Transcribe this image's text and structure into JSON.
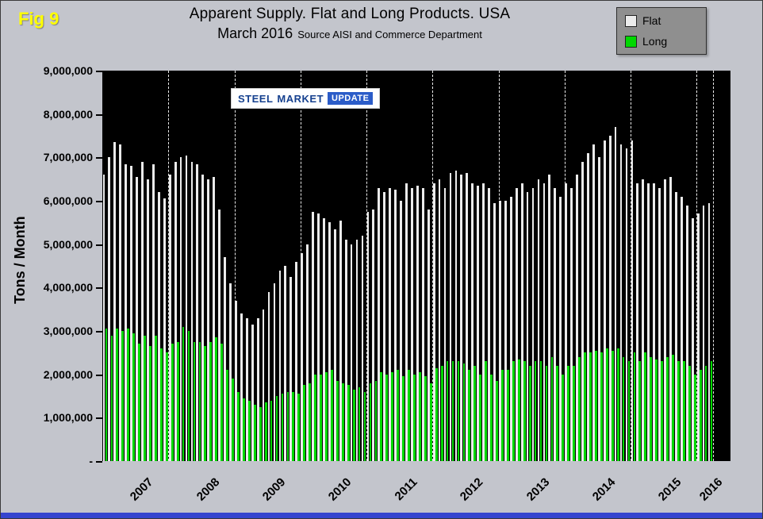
{
  "fig_label": "Fig 9",
  "title": {
    "line1": "Apparent Supply. Flat and Long Products. USA",
    "line2_main": "March 2016",
    "line2_source": "Source AISI and Commerce Department"
  },
  "legend": {
    "flat_label": "Flat",
    "long_label": "Long"
  },
  "watermark": {
    "word1": "STEEL",
    "word2": "MARKET",
    "word3": "UPDATE"
  },
  "y_axis": {
    "title": "Tons / Month",
    "tick_labels": [
      "9,000,000",
      "8,000,000",
      "7,000,000",
      "6,000,000",
      "5,000,000",
      "4,000,000",
      "3,000,000",
      "2,000,000",
      "1,000,000",
      "-"
    ]
  },
  "x_axis": {
    "year_labels": [
      "2007",
      "2008",
      "2009",
      "2010",
      "2011",
      "2012",
      "2013",
      "2014",
      "2015",
      "2016"
    ]
  },
  "colors": {
    "background": "#c3c5cc",
    "plot_background": "#000000",
    "flat": "#ebebeb",
    "long": "#00d800",
    "fig_label": "#ffff00",
    "legend_background": "#8f8f8f",
    "accent_bar": "#3545cf"
  },
  "chart_data": {
    "type": "bar",
    "title": "Apparent Supply. Flat and Long Products. USA",
    "subtitle": "March 2016 Source AISI and Commerce Department",
    "ylabel": "Tons / Month",
    "ylim": [
      0,
      9000000
    ],
    "x_start": "2007-01",
    "x_end": "2016-03",
    "frequency": "monthly",
    "legend_position": "top-right",
    "grid": "vertical-dashed-year-separators",
    "series": [
      {
        "name": "Flat",
        "color": "#ebebeb",
        "values": [
          6600000,
          7000000,
          7350000,
          7300000,
          6850000,
          6800000,
          6550000,
          6900000,
          6500000,
          6850000,
          6200000,
          6050000,
          6600000,
          6900000,
          7000000,
          7050000,
          6900000,
          6850000,
          6600000,
          6500000,
          6550000,
          5800000,
          4700000,
          4100000,
          3700000,
          3400000,
          3300000,
          3150000,
          3300000,
          3500000,
          3900000,
          4100000,
          4400000,
          4500000,
          4250000,
          4600000,
          4800000,
          5000000,
          5750000,
          5700000,
          5600000,
          5500000,
          5350000,
          5550000,
          5100000,
          5000000,
          5100000,
          5200000,
          5750000,
          5800000,
          6300000,
          6200000,
          6300000,
          6250000,
          6000000,
          6400000,
          6300000,
          6350000,
          6300000,
          5800000,
          6400000,
          6500000,
          6300000,
          6650000,
          6700000,
          6600000,
          6650000,
          6400000,
          6350000,
          6400000,
          6300000,
          5950000,
          6000000,
          6000000,
          6100000,
          6300000,
          6400000,
          6200000,
          6300000,
          6500000,
          6400000,
          6600000,
          6300000,
          6100000,
          6400000,
          6300000,
          6600000,
          6900000,
          7100000,
          7300000,
          7000000,
          7400000,
          7500000,
          7700000,
          7300000,
          7200000,
          7400000,
          6400000,
          6500000,
          6400000,
          6400000,
          6300000,
          6500000,
          6550000,
          6200000,
          6100000,
          5900000,
          5600000,
          5700000,
          5900000,
          5950000
        ]
      },
      {
        "name": "Long",
        "color": "#00d800",
        "values": [
          3050000,
          2900000,
          3050000,
          3000000,
          3050000,
          2950000,
          2700000,
          2900000,
          2650000,
          2900000,
          2600000,
          2500000,
          2700000,
          2750000,
          3100000,
          3000000,
          2750000,
          2750000,
          2650000,
          2750000,
          2850000,
          2700000,
          2100000,
          1900000,
          1600000,
          1450000,
          1400000,
          1300000,
          1250000,
          1350000,
          1400000,
          1500000,
          1550000,
          1600000,
          1600000,
          1550000,
          1750000,
          1800000,
          2000000,
          2000000,
          2050000,
          2100000,
          1850000,
          1800000,
          1750000,
          1650000,
          1700000,
          1600000,
          1800000,
          1850000,
          2050000,
          2000000,
          2050000,
          2100000,
          1950000,
          2100000,
          2000000,
          2050000,
          1950000,
          1800000,
          2150000,
          2200000,
          2300000,
          2300000,
          2300000,
          2250000,
          2100000,
          2200000,
          2000000,
          2300000,
          2000000,
          1850000,
          2100000,
          2100000,
          2300000,
          2350000,
          2300000,
          2200000,
          2300000,
          2300000,
          2200000,
          2400000,
          2200000,
          2000000,
          2200000,
          2200000,
          2400000,
          2500000,
          2500000,
          2550000,
          2500000,
          2600000,
          2550000,
          2600000,
          2400000,
          2300000,
          2500000,
          2300000,
          2500000,
          2400000,
          2350000,
          2300000,
          2400000,
          2450000,
          2300000,
          2300000,
          2200000,
          2000000,
          2100000,
          2200000,
          2300000
        ]
      }
    ]
  }
}
